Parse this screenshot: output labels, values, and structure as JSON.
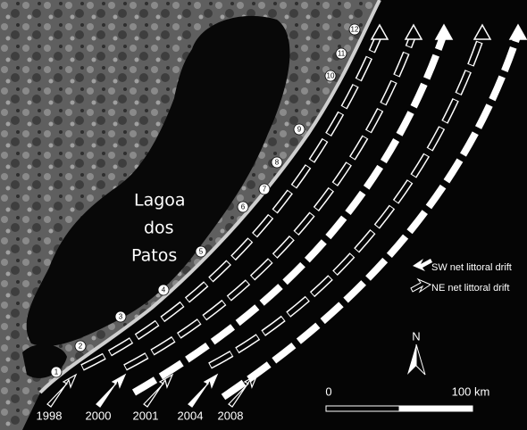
{
  "map": {
    "lake_label": [
      "Lagoa",
      "dos",
      "Patos"
    ],
    "sites": [
      "1",
      "2",
      "3",
      "4",
      "5",
      "6",
      "7",
      "8",
      "9",
      "10",
      "11",
      "12"
    ],
    "legend": [
      "SW net littoral drift",
      "NE net littoral drift"
    ],
    "years": [
      "1998",
      "2000",
      "2001",
      "2004",
      "2008"
    ],
    "north": "N",
    "scale": [
      "0",
      "100 km"
    ]
  }
}
